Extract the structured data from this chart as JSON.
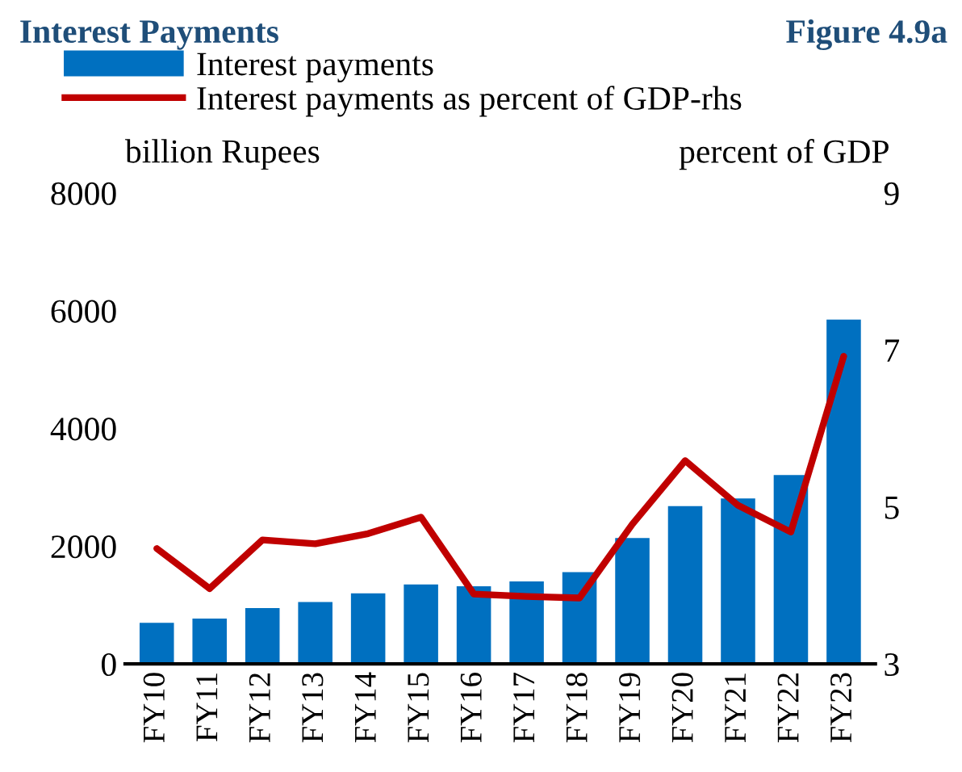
{
  "chart_data": {
    "type": "bar",
    "title": "Interest Payments",
    "subtitle": "Figure 4.9a",
    "ylabel": "billion Rupees",
    "y2label": "percent of GDP",
    "categories": [
      "FY10",
      "FY11",
      "FY12",
      "FY13",
      "FY14",
      "FY15",
      "FY16",
      "FY17",
      "FY18",
      "FY19",
      "FY20",
      "FY21",
      "FY22",
      "FY23"
    ],
    "series": [
      {
        "name": "Interest payments",
        "color": "#0070c0",
        "values": [
          700,
          770,
          950,
          1050,
          1200,
          1350,
          1320,
          1400,
          1560,
          2140,
          2680,
          2810,
          3210,
          5850
        ]
      },
      {
        "name": "Interest payments as percent of GDP-rhs",
        "type": "line",
        "axis": "y2",
        "color": "#c00000",
        "values": [
          4.47,
          3.96,
          4.58,
          4.53,
          4.66,
          4.87,
          3.89,
          3.86,
          3.84,
          4.78,
          5.59,
          5.02,
          4.68,
          6.92
        ]
      }
    ],
    "ylim": [
      0,
      8000
    ],
    "yticks": [
      0,
      2000,
      4000,
      6000,
      8000
    ],
    "y2lim": [
      3,
      9
    ],
    "y2ticks": [
      3,
      5,
      7,
      9
    ],
    "grid": false,
    "legend": "top left",
    "marker": "none",
    "line_style": "solid"
  }
}
